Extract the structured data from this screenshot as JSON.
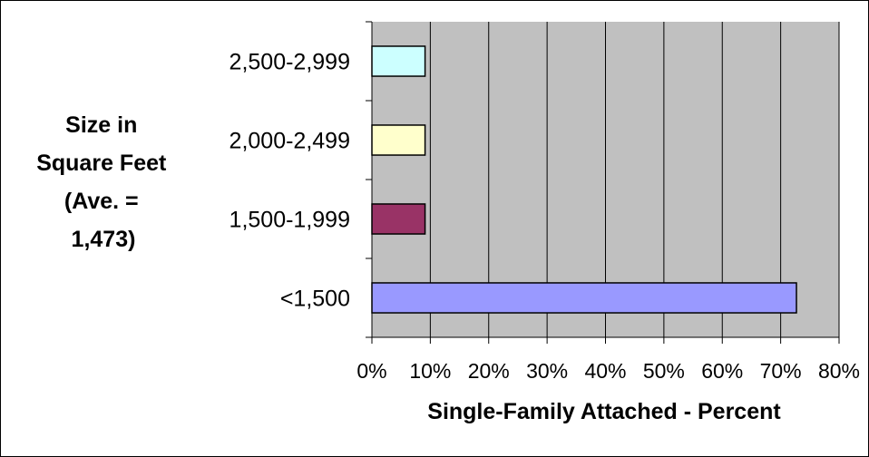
{
  "chart_data": {
    "type": "bar",
    "orientation": "horizontal",
    "title": "",
    "ylabel": [
      "Size in",
      "Square Feet",
      "(Ave. =",
      "1,473)"
    ],
    "xlabel": "Single-Family Attached - Percent",
    "categories": [
      "<1,500",
      "1,500-1,999",
      "2,000-2,499",
      "2,500-2,999"
    ],
    "values": [
      72.7,
      9.1,
      9.1,
      9.1
    ],
    "bar_colors": [
      "#9999ff",
      "#993366",
      "#ffffcc",
      "#ccffff"
    ],
    "plot_background": "#c0c0c0",
    "xlim": [
      0,
      80
    ],
    "xticks": [
      "0%",
      "10%",
      "20%",
      "30%",
      "40%",
      "50%",
      "60%",
      "70%",
      "80%"
    ],
    "grid": true,
    "legend": "none"
  }
}
